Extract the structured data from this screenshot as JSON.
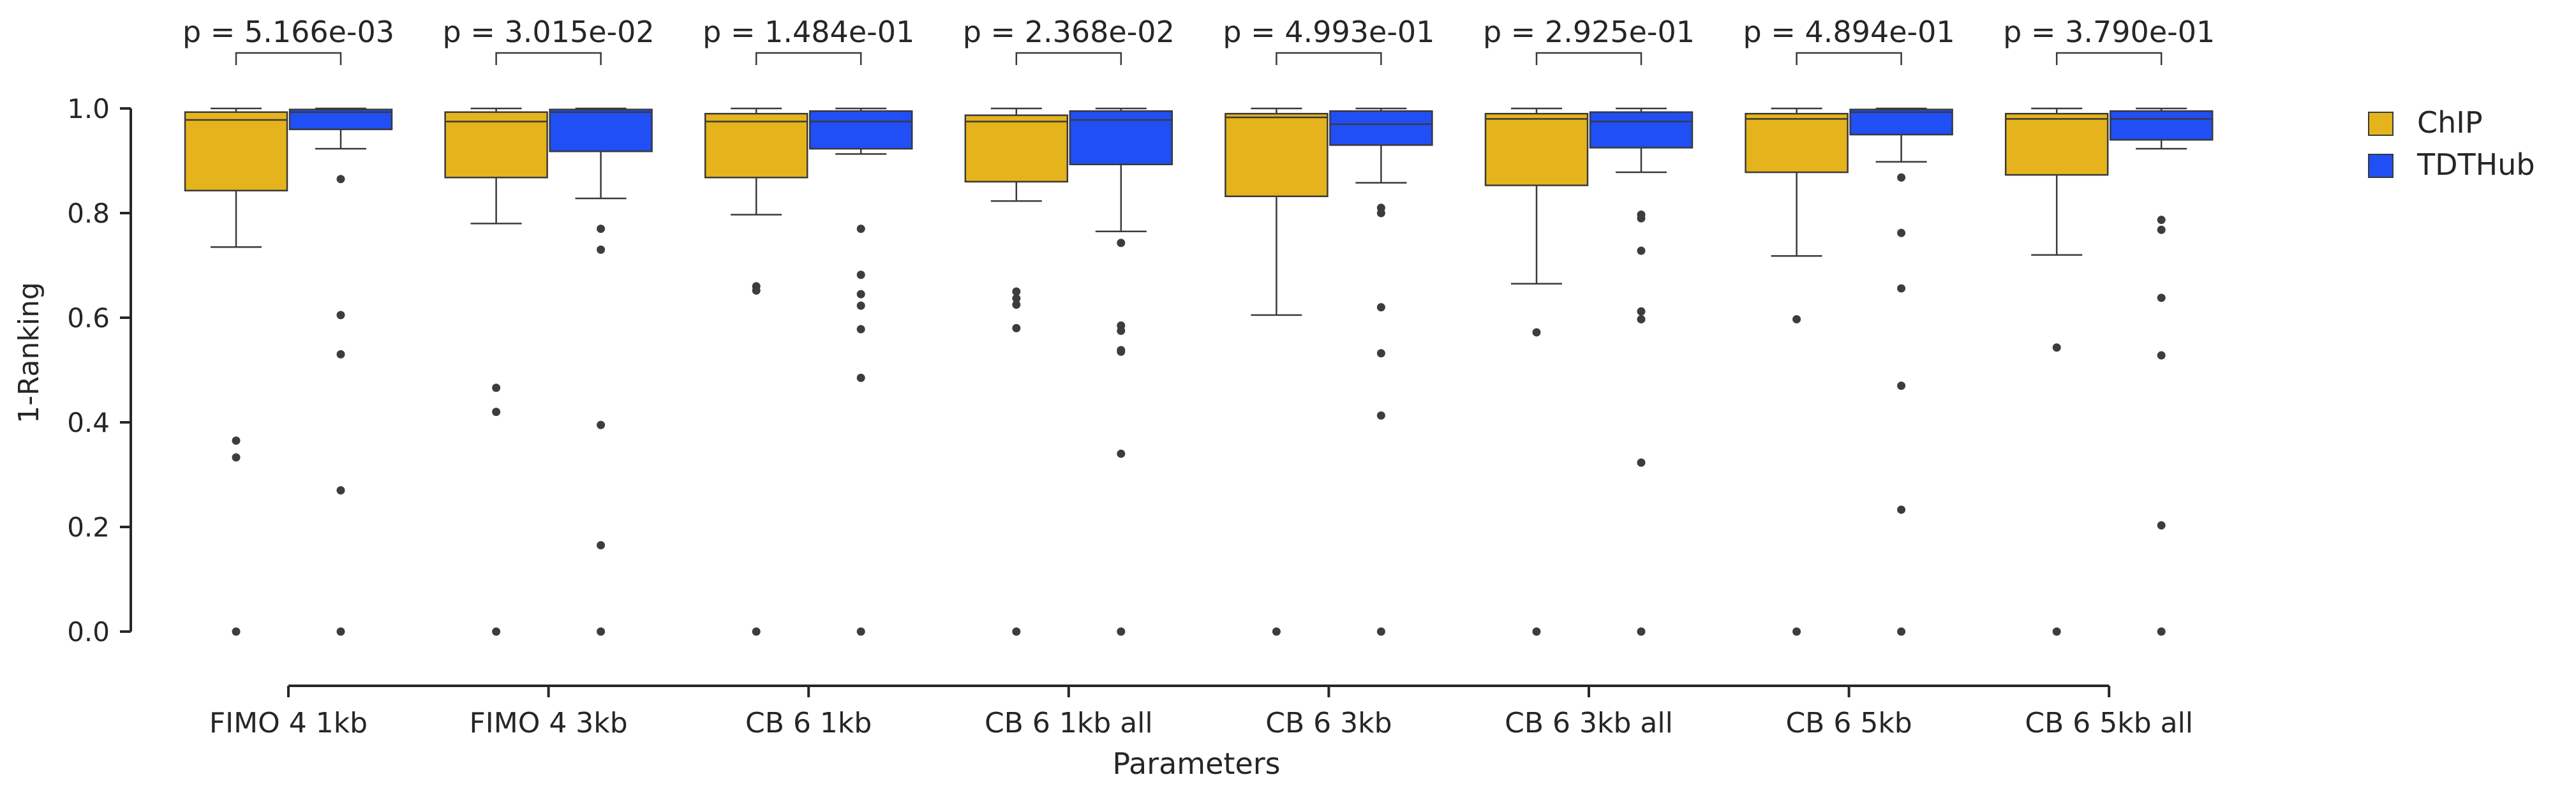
{
  "colors": {
    "chip": "#e5b31c",
    "tdthub": "#1f4ff5",
    "outline": "#3a3a3a",
    "axis": "#262626",
    "flier": "#3d3d3d"
  },
  "chart_data": {
    "type": "box",
    "xlabel": "Parameters",
    "ylabel": "1-Ranking",
    "ylim": [
      0.0,
      1.0
    ],
    "yticks": [
      "0.0",
      "0.2",
      "0.4",
      "0.6",
      "0.8",
      "1.0"
    ],
    "categories": [
      "FIMO 4 1kb",
      "FIMO 4 3kb",
      "CB 6 1kb",
      "CB 6 1kb all",
      "CB 6 3kb",
      "CB 6 3kb all",
      "CB 6 5kb",
      "CB 6 5kb all"
    ],
    "pvalues": [
      "p = 5.166e-03",
      "p = 3.015e-02",
      "p = 1.484e-01",
      "p = 2.368e-02",
      "p = 4.993e-01",
      "p = 2.925e-01",
      "p = 4.894e-01",
      "p = 3.790e-01"
    ],
    "legend_position": "top-right",
    "series": [
      {
        "name": "ChIP",
        "color": "#e5b31c",
        "boxes": [
          {
            "whislo": 0.735,
            "q1": 0.843,
            "med": 0.978,
            "q3": 0.993,
            "whishi": 1.0,
            "fliers": [
              0.365,
              0.333,
              0.0
            ]
          },
          {
            "whislo": 0.78,
            "q1": 0.868,
            "med": 0.975,
            "q3": 0.993,
            "whishi": 1.0,
            "fliers": [
              0.466,
              0.42,
              0.0
            ]
          },
          {
            "whislo": 0.797,
            "q1": 0.868,
            "med": 0.975,
            "q3": 0.99,
            "whishi": 1.0,
            "fliers": [
              0.66,
              0.652,
              0.0
            ]
          },
          {
            "whislo": 0.823,
            "q1": 0.86,
            "med": 0.975,
            "q3": 0.987,
            "whishi": 1.0,
            "fliers": [
              0.65,
              0.637,
              0.625,
              0.58,
              0.0
            ]
          },
          {
            "whislo": 0.605,
            "q1": 0.832,
            "med": 0.983,
            "q3": 0.99,
            "whishi": 1.0,
            "fliers": [
              0.0
            ]
          },
          {
            "whislo": 0.665,
            "q1": 0.853,
            "med": 0.98,
            "q3": 0.99,
            "whishi": 1.0,
            "fliers": [
              0.572,
              0.0
            ]
          },
          {
            "whislo": 0.718,
            "q1": 0.878,
            "med": 0.98,
            "q3": 0.99,
            "whishi": 1.0,
            "fliers": [
              0.597,
              0.0
            ]
          },
          {
            "whislo": 0.72,
            "q1": 0.873,
            "med": 0.98,
            "q3": 0.99,
            "whishi": 1.0,
            "fliers": [
              0.543,
              0.0
            ]
          }
        ]
      },
      {
        "name": "TDTHub",
        "color": "#1f4ff5",
        "boxes": [
          {
            "whislo": 0.923,
            "q1": 0.96,
            "med": 0.993,
            "q3": 0.998,
            "whishi": 1.0,
            "fliers": [
              0.865,
              0.605,
              0.53,
              0.27,
              0.0
            ]
          },
          {
            "whislo": 0.828,
            "q1": 0.918,
            "med": 0.993,
            "q3": 0.998,
            "whishi": 1.0,
            "fliers": [
              0.77,
              0.73,
              0.395,
              0.165,
              0.0
            ]
          },
          {
            "whislo": 0.913,
            "q1": 0.923,
            "med": 0.975,
            "q3": 0.995,
            "whishi": 1.0,
            "fliers": [
              0.77,
              0.682,
              0.645,
              0.623,
              0.578,
              0.485,
              0.0
            ]
          },
          {
            "whislo": 0.765,
            "q1": 0.893,
            "med": 0.978,
            "q3": 0.995,
            "whishi": 1.0,
            "fliers": [
              0.743,
              0.585,
              0.575,
              0.538,
              0.535,
              0.34,
              0.0
            ]
          },
          {
            "whislo": 0.858,
            "q1": 0.93,
            "med": 0.97,
            "q3": 0.995,
            "whishi": 1.0,
            "fliers": [
              0.81,
              0.8,
              0.62,
              0.532,
              0.413,
              0.0
            ]
          },
          {
            "whislo": 0.878,
            "q1": 0.925,
            "med": 0.975,
            "q3": 0.993,
            "whishi": 1.0,
            "fliers": [
              0.797,
              0.79,
              0.728,
              0.612,
              0.597,
              0.323,
              0.0
            ]
          },
          {
            "whislo": 0.898,
            "q1": 0.95,
            "med": 0.993,
            "q3": 0.998,
            "whishi": 1.0,
            "fliers": [
              0.868,
              0.762,
              0.656,
              0.47,
              0.233,
              0.0
            ]
          },
          {
            "whislo": 0.923,
            "q1": 0.94,
            "med": 0.98,
            "q3": 0.995,
            "whishi": 1.0,
            "fliers": [
              0.787,
              0.768,
              0.638,
              0.528,
              0.203,
              0.0
            ]
          }
        ]
      }
    ]
  }
}
